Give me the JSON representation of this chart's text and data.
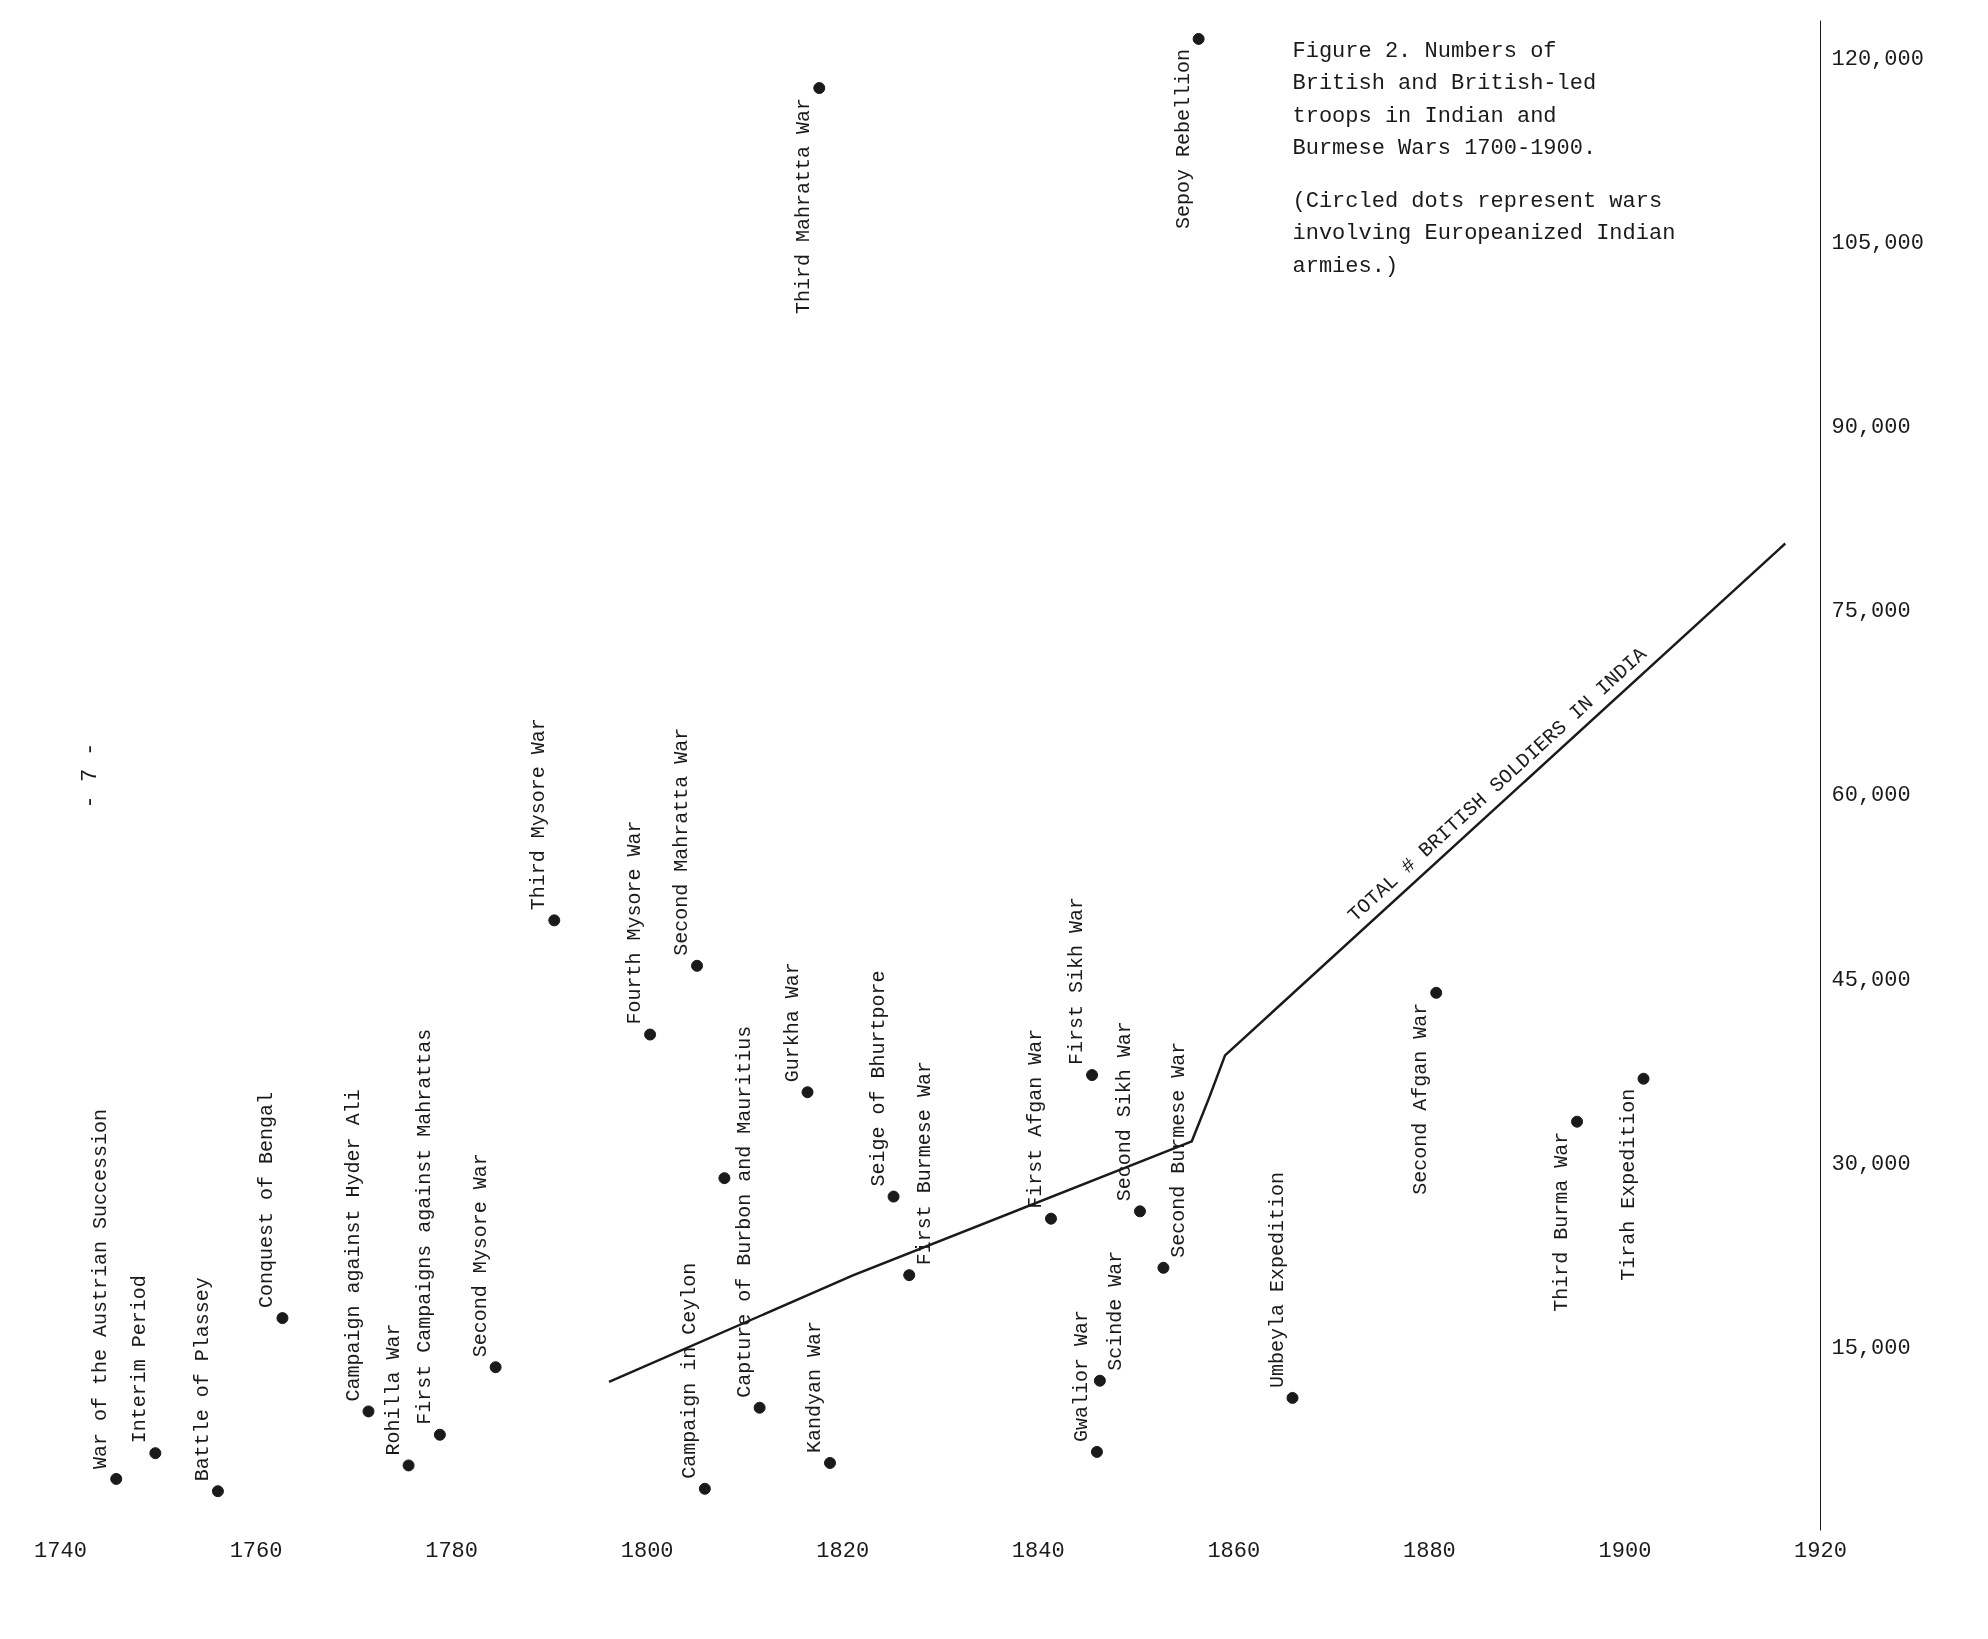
{
  "chart_data": {
    "type": "scatter",
    "title": "Figure 2.  Numbers of British and British-led troops in Indian and Burmese Wars 1700-1900.",
    "subtitle": "(Circled dots represent wars involving Europeanized Indian armies.)",
    "xlim": [
      1740,
      1920
    ],
    "ylim": [
      0,
      123000
    ],
    "xticks": [
      1740,
      1760,
      1780,
      1800,
      1820,
      1840,
      1860,
      1880,
      1900,
      1920
    ],
    "yticks": [
      {
        "value": 15000,
        "label": "15,000"
      },
      {
        "value": 30000,
        "label": "30,000"
      },
      {
        "value": 45000,
        "label": "45,000"
      },
      {
        "value": 60000,
        "label": "60,000"
      },
      {
        "value": 75000,
        "label": "75,000"
      },
      {
        "value": 90000,
        "label": "90,000"
      },
      {
        "value": 105000,
        "label": "105,000"
      },
      {
        "value": 120000,
        "label": "120,000"
      }
    ],
    "grid": false,
    "marker": "circle",
    "series": [
      {
        "color": "#1a1a1a",
        "x": [
          1745.7,
          1749.7,
          1756.1,
          1762.7,
          1771.5,
          1775.6,
          1778.8,
          1784.5,
          1790.5,
          1800.3,
          1805.1,
          1805.9,
          1807.9,
          1811.5,
          1816.4,
          1817.6,
          1818.7,
          1825.2,
          1826.8,
          1841.3,
          1845.5,
          1846.0,
          1846.3,
          1850.4,
          1852.8,
          1856.4,
          1866.0,
          1880.7,
          1895.1,
          1901.9
        ],
        "values": [
          4200,
          6300,
          3200,
          17300,
          9700,
          5300,
          7800,
          13300,
          49700,
          40400,
          46000,
          3400,
          28700,
          10000,
          35700,
          117500,
          5500,
          27200,
          20800,
          25400,
          37100,
          6400,
          12200,
          26000,
          21400,
          121500,
          10800,
          43800,
          33300,
          36800
        ]
      },
      {
        "type": "line",
        "color": "#1a1a1a",
        "name": "TOTAL # BRITISH SOLDIERS IN INDIA",
        "marker": "none",
        "line_style": "solid",
        "x": [
          1796.1,
          1821.1,
          1855.7,
          1857.5,
          1859.1,
          1916.4
        ],
        "values": [
          12100,
          20800,
          31700,
          35300,
          38700,
          80400
        ]
      }
    ],
    "annotations": [
      "- 7 -",
      {
        "text": "War of the Austrian Succession",
        "x": 1745.7,
        "y": 4200
      },
      {
        "text": "Interim Period",
        "x": 1749.7,
        "y": 6300
      },
      {
        "text": "Battle of Plassey",
        "x": 1756.1,
        "y": 3200
      },
      {
        "text": "Conquest of Bengal",
        "x": 1762.7,
        "y": 17300
      },
      {
        "text": "Campaign against Hyder Ali",
        "x": 1771.5,
        "y": 9700
      },
      {
        "text": "Rohilla War",
        "x": 1775.6,
        "y": 5300
      },
      {
        "text": "First Campaigns against Mahrattas",
        "x": 1778.8,
        "y": 7800
      },
      {
        "text": "Second Mysore War",
        "x": 1784.5,
        "y": 13300
      },
      {
        "text": "Third Mysore War",
        "x": 1790.5,
        "y": 49700
      },
      {
        "text": "Fourth Mysore War",
        "x": 1800.3,
        "y": 40400
      },
      {
        "text": "Second Mahratta War",
        "x": 1805.1,
        "y": 46000
      },
      {
        "text": "Campaign in Ceylon",
        "x": 1805.9,
        "y": 3400
      },
      {
        "text": "Capture of Burbon and Mauritius",
        "x": 1811.5,
        "y": 10000
      },
      {
        "text": "Gurkha War",
        "x": 1816.4,
        "y": 35700
      },
      {
        "text": "Third Mahratta War",
        "x": 1817.6,
        "y": 117500
      },
      {
        "text": "Kandyan War",
        "x": 1818.7,
        "y": 5500
      },
      {
        "text": "Seige of Bhurtpore",
        "x": 1825.2,
        "y": 27200
      },
      {
        "text": "First Burmese War",
        "x": 1826.8,
        "y": 20800
      },
      {
        "text": "First Afgan War",
        "x": 1841.3,
        "y": 25400
      },
      {
        "text": "First Sikh War",
        "x": 1845.5,
        "y": 37100
      },
      {
        "text": "Gwalior War",
        "x": 1846.0,
        "y": 6400
      },
      {
        "text": "Scinde War",
        "x": 1846.3,
        "y": 12200
      },
      {
        "text": "Second Sikh War",
        "x": 1850.4,
        "y": 26000
      },
      {
        "text": "Second Burmese War",
        "x": 1852.8,
        "y": 21400
      },
      {
        "text": "Sepoy Rebellion",
        "x": 1856.4,
        "y": 121500
      },
      {
        "text": "Umbeyla Expedition",
        "x": 1866.0,
        "y": 10800
      },
      {
        "text": "Second Afgan War",
        "x": 1880.7,
        "y": 43800
      },
      {
        "text": "Third Burma War",
        "x": 1895.1,
        "y": 33300
      },
      {
        "text": "Tirah Expedition",
        "x": 1901.9,
        "y": 36800
      }
    ]
  }
}
